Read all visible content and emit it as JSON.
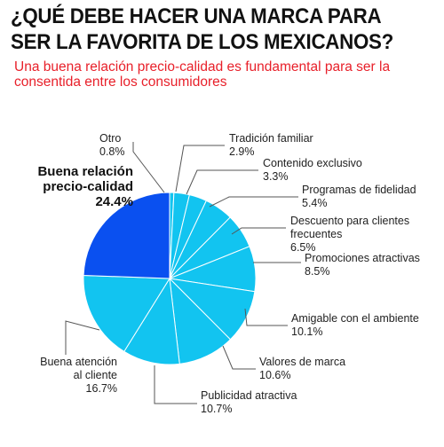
{
  "header": {
    "title_line1": "¿QUÉ DEBE HACER UNA MARCA PARA",
    "title_line2": "SER LA FAVORITA DE LOS MEXICANOS?",
    "subtitle_line1": "Una buena relación precio-calidad es fundamental para ser la",
    "subtitle_line2": "consentida entre los consumidores"
  },
  "colors": {
    "highlight": "#0a50f0",
    "slice": "#12c4f0",
    "title": "#111111",
    "subtitle": "#e8202a"
  },
  "chart_data": {
    "type": "pie",
    "start": "12 o'clock, clockwise",
    "slices": [
      {
        "label": [
          "Otro"
        ],
        "value": 0.8,
        "display": "0.8%"
      },
      {
        "label": [
          "Tradición familiar"
        ],
        "value": 2.9,
        "display": "2.9%"
      },
      {
        "label": [
          "Contenido exclusivo"
        ],
        "value": 3.3,
        "display": "3.3%"
      },
      {
        "label": [
          "Programas de fidelidad"
        ],
        "value": 5.4,
        "display": "5.4%"
      },
      {
        "label": [
          "Descuento para clientes",
          "frecuentes"
        ],
        "value": 6.5,
        "display": "6.5%"
      },
      {
        "label": [
          "Promociones atractivas"
        ],
        "value": 8.5,
        "display": "8.5%"
      },
      {
        "label": [
          "Amigable con el ambiente"
        ],
        "value": 10.1,
        "display": "10.1%"
      },
      {
        "label": [
          "Valores de marca"
        ],
        "value": 10.6,
        "display": "10.6%"
      },
      {
        "label": [
          "Publicidad atractiva"
        ],
        "value": 10.7,
        "display": "10.7%"
      },
      {
        "label": [
          "Buena atención",
          "al cliente"
        ],
        "value": 16.7,
        "display": "16.7%"
      },
      {
        "label": [
          "Buena relación",
          "precio-calidad"
        ],
        "value": 24.4,
        "display": "24.4%",
        "highlight": true
      }
    ]
  }
}
